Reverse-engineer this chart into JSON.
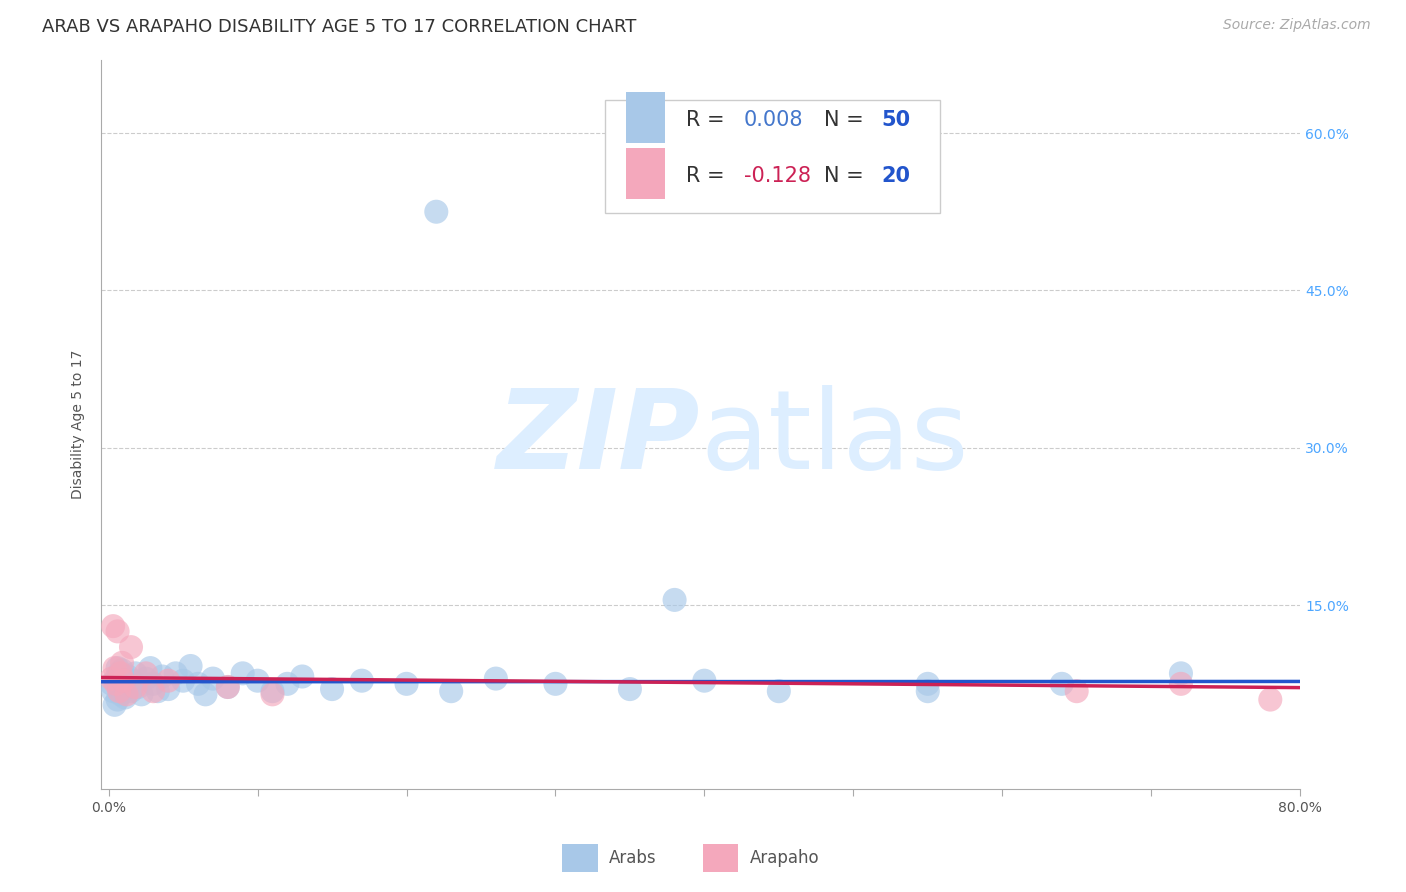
{
  "title": "ARAB VS ARAPAHO DISABILITY AGE 5 TO 17 CORRELATION CHART",
  "source": "Source: ZipAtlas.com",
  "ylabel": "Disability Age 5 to 17",
  "xlim": [
    -0.005,
    0.8
  ],
  "ylim": [
    -0.025,
    0.67
  ],
  "yticks": [
    0.0,
    0.15,
    0.3,
    0.45,
    0.6
  ],
  "xticks": [
    0.0,
    0.1,
    0.2,
    0.3,
    0.4,
    0.5,
    0.6,
    0.7,
    0.8
  ],
  "xtick_labels": [
    "0.0%",
    "",
    "",
    "",
    "",
    "",
    "",
    "",
    "80.0%"
  ],
  "right_ytick_labels": [
    "",
    "15.0%",
    "30.0%",
    "45.0%",
    "60.0%"
  ],
  "legend_arab_R": "0.008",
  "legend_arab_N": "50",
  "legend_arapaho_R": "-0.128",
  "legend_arapaho_N": "20",
  "arab_color": "#a8c8e8",
  "arapaho_color": "#f4a8bc",
  "arab_line_color": "#2255cc",
  "arapaho_line_color": "#cc2255",
  "arab_text_color": "#4477cc",
  "arapaho_text_color": "#cc2255",
  "N_color": "#2255cc",
  "R_label_color": "#333333",
  "background_color": "#ffffff",
  "watermark_color": "#ddeeff",
  "grid_color": "#cccccc",
  "title_fontsize": 13,
  "axis_label_fontsize": 10,
  "tick_fontsize": 10,
  "legend_fontsize": 15,
  "source_fontsize": 10
}
